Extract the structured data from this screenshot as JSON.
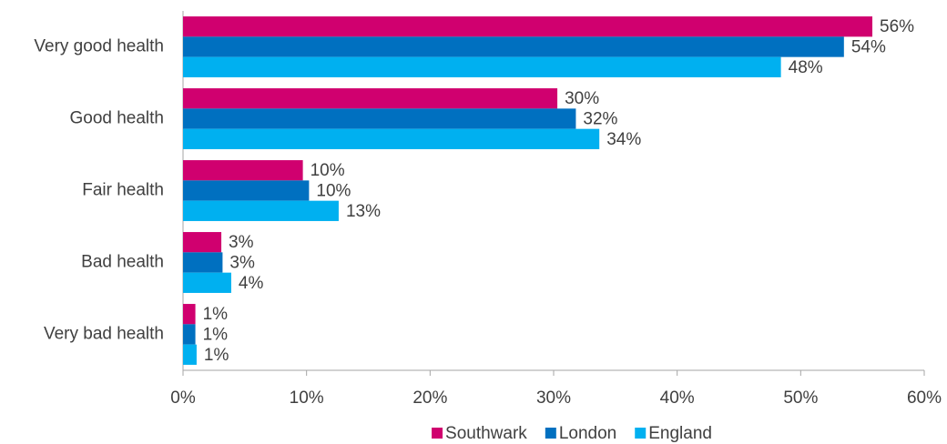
{
  "chart_data": {
    "type": "bar",
    "orientation": "horizontal",
    "categories": [
      "Very good health",
      "Good health",
      "Fair health",
      "Bad health",
      "Very bad health"
    ],
    "series": [
      {
        "name": "Southwark",
        "color": "#d0006f",
        "values": [
          55.8,
          30.3,
          9.7,
          3.1,
          1.0
        ],
        "value_labels": [
          "56%",
          "30%",
          "10%",
          "3%",
          "1%"
        ]
      },
      {
        "name": "London",
        "color": "#0070c0",
        "values": [
          53.5,
          31.8,
          10.2,
          3.2,
          1.0
        ],
        "value_labels": [
          "54%",
          "32%",
          "10%",
          "3%",
          "1%"
        ]
      },
      {
        "name": "England",
        "color": "#00b0f0",
        "values": [
          48.4,
          33.7,
          12.6,
          3.9,
          1.1
        ],
        "value_labels": [
          "48%",
          "34%",
          "13%",
          "4%",
          "1%"
        ]
      }
    ],
    "xlim": [
      0,
      60
    ],
    "xticks": [
      {
        "value": 0,
        "label": "0%"
      },
      {
        "value": 10,
        "label": "10%"
      },
      {
        "value": 20,
        "label": "20%"
      },
      {
        "value": 30,
        "label": "30%"
      },
      {
        "value": 40,
        "label": "40%"
      },
      {
        "value": 50,
        "label": "50%"
      },
      {
        "value": 60,
        "label": "60%"
      }
    ],
    "grid": false,
    "legend": "bottom"
  }
}
